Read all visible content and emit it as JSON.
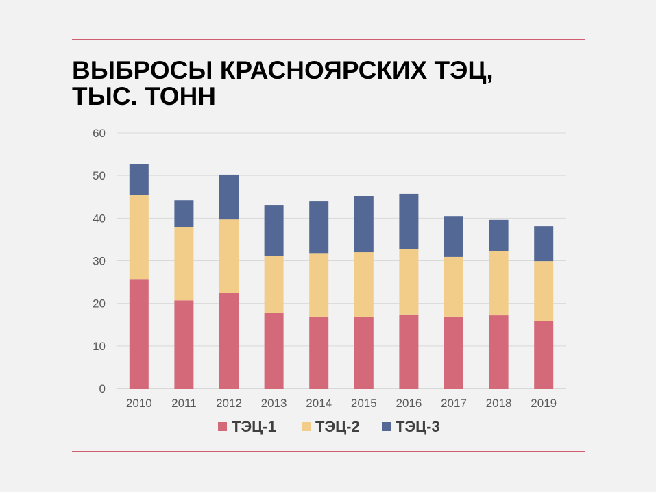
{
  "title_line1": "ВЫБРОСЫ КРАСНОЯРСКИХ ТЭЦ,",
  "title_line2": "ТЫС. ТОНН",
  "chart_data": {
    "type": "bar",
    "stacked": true,
    "title": "ВЫБРОСЫ КРАСНОЯРСКИХ ТЭЦ, ТЫС. ТОНН",
    "xlabel": "",
    "ylabel": "",
    "ylim": [
      0,
      60
    ],
    "yticks": [
      0,
      10,
      20,
      30,
      40,
      50,
      60
    ],
    "grid": true,
    "legend": "bottom",
    "categories": [
      "2010",
      "2011",
      "2012",
      "2013",
      "2014",
      "2015",
      "2016",
      "2017",
      "2018",
      "2019"
    ],
    "series": [
      {
        "name": "ТЭЦ-1",
        "color": "#d4697a",
        "values": [
          25.7,
          20.7,
          22.5,
          17.7,
          16.9,
          16.9,
          17.4,
          16.9,
          17.2,
          15.8
        ]
      },
      {
        "name": "ТЭЦ-2",
        "color": "#f2cd8a",
        "values": [
          19.8,
          17.1,
          17.2,
          13.5,
          14.9,
          15.1,
          15.3,
          14.0,
          15.1,
          14.1
        ]
      },
      {
        "name": "ТЭЦ-3",
        "color": "#536894",
        "values": [
          7.1,
          6.4,
          10.5,
          11.9,
          12.1,
          13.2,
          13.0,
          9.6,
          7.3,
          8.2
        ]
      }
    ]
  }
}
